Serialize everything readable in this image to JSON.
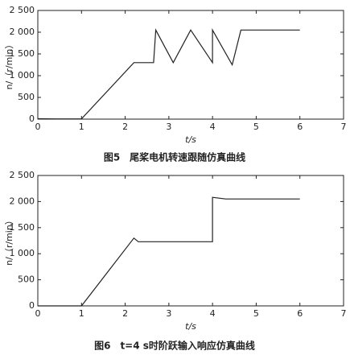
{
  "chart_data": [
    {
      "type": "line",
      "title": "图5　尾桨电机转速跟随仿真曲线",
      "x_label": "t/s",
      "y_label": "n/（r/min）",
      "x": [
        0,
        0.4,
        0.8,
        1,
        2.2,
        2.65,
        2.7,
        3.1,
        3.5,
        4,
        4,
        4.45,
        4.65,
        6
      ],
      "values": [
        10,
        5,
        5,
        5,
        1300,
        1300,
        2050,
        1300,
        2050,
        1300,
        2050,
        1250,
        2050,
        2050
      ],
      "color": "#222222",
      "xlim": [
        0,
        7
      ],
      "ylim": [
        0,
        2500
      ],
      "xticks": [
        0,
        1,
        2,
        3,
        4,
        5,
        6,
        7
      ],
      "yticks": [
        0,
        500,
        {
          "value": 1000,
          "label": "1 000"
        },
        {
          "value": 1500,
          "label": "1 500"
        },
        {
          "value": 2000,
          "label": "2 000"
        },
        {
          "value": 2500,
          "label": "2 500"
        }
      ]
    },
    {
      "type": "line",
      "title": "图6　t=4 s时阶跃输入响应仿真曲线",
      "x_label": "t/s",
      "y_label": "n/（r/min）",
      "x": [
        0,
        0.4,
        1,
        2.2,
        2.3,
        4,
        4,
        4.3,
        6
      ],
      "values": [
        0,
        0,
        0,
        1300,
        1230,
        1230,
        2080,
        2050,
        2050
      ],
      "color": "#222222",
      "xlim": [
        0,
        7
      ],
      "ylim": [
        0,
        2500
      ],
      "xticks": [
        0,
        1,
        2,
        3,
        4,
        5,
        6,
        7
      ],
      "yticks": [
        0,
        500,
        {
          "value": 1000,
          "label": "1 000"
        },
        {
          "value": 1500,
          "label": "1 500"
        },
        {
          "value": 2000,
          "label": "2 000"
        },
        {
          "value": 2500,
          "label": "2 500"
        }
      ]
    }
  ]
}
